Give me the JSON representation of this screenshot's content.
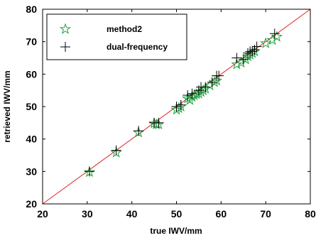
{
  "chart_data": {
    "type": "scatter",
    "title": "",
    "xlabel": "true IWV/mm",
    "ylabel": "retrieved IWV/mm",
    "xlim": [
      20,
      80
    ],
    "ylim": [
      20,
      80
    ],
    "xticks": [
      "20",
      "30",
      "40",
      "50",
      "60",
      "70",
      "80"
    ],
    "yticks": [
      "20",
      "30",
      "40",
      "50",
      "60",
      "70",
      "80"
    ],
    "grid": false,
    "legend_position": "top-left",
    "reference_line": {
      "x": [
        20,
        80
      ],
      "y": [
        20,
        80
      ],
      "color": "#e02020"
    },
    "series": [
      {
        "name": "method2",
        "marker": "star",
        "color": "#20a040",
        "points": [
          [
            30.5,
            29.8
          ],
          [
            36.5,
            35.8
          ],
          [
            41.5,
            42.0
          ],
          [
            45.0,
            44.8
          ],
          [
            45.5,
            44.5
          ],
          [
            46.0,
            44.5
          ],
          [
            50.0,
            49.0
          ],
          [
            50.5,
            49.5
          ],
          [
            51.0,
            50.0
          ],
          [
            52.5,
            52.5
          ],
          [
            53.0,
            52.0
          ],
          [
            53.5,
            53.0
          ],
          [
            54.0,
            53.5
          ],
          [
            54.5,
            53.8
          ],
          [
            55.0,
            54.0
          ],
          [
            55.5,
            54.5
          ],
          [
            56.0,
            55.0
          ],
          [
            56.5,
            55.5
          ],
          [
            57.5,
            56.5
          ],
          [
            58.5,
            57.5
          ],
          [
            59.0,
            58.0
          ],
          [
            63.5,
            63.0
          ],
          [
            64.5,
            63.5
          ],
          [
            65.5,
            64.5
          ],
          [
            66.0,
            65.5
          ],
          [
            66.5,
            66.0
          ],
          [
            67.0,
            66.5
          ],
          [
            67.5,
            67.0
          ],
          [
            70.0,
            69.5
          ],
          [
            71.5,
            70.5
          ],
          [
            72.5,
            71.5
          ]
        ]
      },
      {
        "name": "dual-frequency",
        "marker": "plus",
        "color": "#000000",
        "points": [
          [
            30.5,
            30.0
          ],
          [
            36.5,
            36.5
          ],
          [
            41.5,
            42.5
          ],
          [
            45.0,
            45.0
          ],
          [
            46.0,
            45.0
          ],
          [
            50.0,
            50.0
          ],
          [
            51.0,
            50.5
          ],
          [
            52.5,
            53.5
          ],
          [
            53.5,
            54.0
          ],
          [
            55.0,
            55.0
          ],
          [
            55.5,
            56.0
          ],
          [
            56.5,
            56.0
          ],
          [
            58.0,
            57.5
          ],
          [
            59.0,
            59.5
          ],
          [
            59.5,
            59.5
          ],
          [
            63.5,
            65.0
          ],
          [
            65.0,
            64.5
          ],
          [
            66.0,
            66.5
          ],
          [
            66.5,
            67.0
          ],
          [
            67.0,
            67.0
          ],
          [
            67.5,
            67.5
          ],
          [
            68.0,
            68.5
          ],
          [
            72.0,
            72.5
          ]
        ]
      }
    ]
  }
}
